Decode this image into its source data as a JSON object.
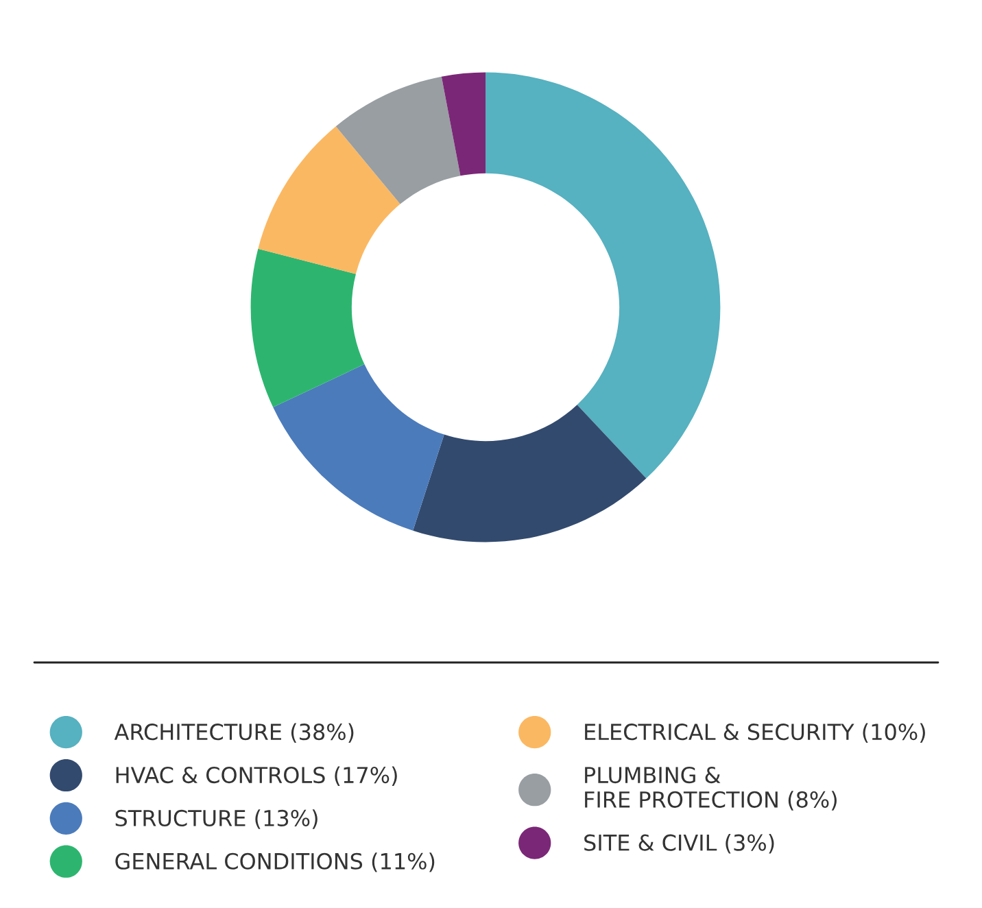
{
  "chart_data": {
    "type": "donut",
    "categories": [
      "ARCHITECTURE (38%)",
      "HVAC & CONTROLS (17%)",
      "STRUCTURE (13%)",
      "GENERAL CONDITIONS (11%)",
      "ELECTRICAL & SECURITY (10%)",
      "PLUMBING &\nFIRE PROTECTION (8%)",
      "SITE & CIVIL (3%)"
    ],
    "values": [
      38,
      17,
      13,
      11,
      10,
      8,
      3
    ],
    "colors": [
      "#56b1c0",
      "#324a6e",
      "#4b7bbb",
      "#2db56f",
      "#fbb862",
      "#989ea2",
      "#7b2777"
    ],
    "legend": "bottom"
  }
}
